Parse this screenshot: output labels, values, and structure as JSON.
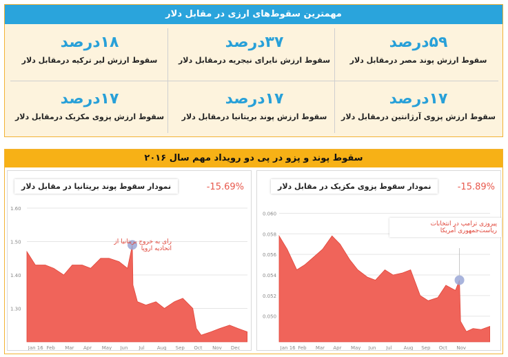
{
  "top": {
    "title": "مهمترین سقوط‌های ارزی در مقابل دلار",
    "stats": [
      {
        "pct": "۵۹درصد",
        "desc": "سقوط ارزش پوند مصر درمقابل دلار"
      },
      {
        "pct": "۳۷درصد",
        "desc": "سقوط ارزش نایرای نیجریه درمقابل دلار"
      },
      {
        "pct": "۱۸درصد",
        "desc": "سقوط ارزش لیر ترکیه درمقابل دلار"
      },
      {
        "pct": "۱۷درصد",
        "desc": "سقوط ارزش پزوی آرژانتین درمقابل دلار"
      },
      {
        "pct": "۱۷درصد",
        "desc": "سقوط ارزش پوند بریتانیا درمقابل دلار"
      },
      {
        "pct": "۱۷درصد",
        "desc": "سقوط ارزش پزوی مکزیک درمقابل دلار"
      }
    ]
  },
  "bottom": {
    "title": "سقوط پوند و پزو در پی دو رویداد مهم سال ۲۰۱۶"
  },
  "colors": {
    "area": "#f0645a",
    "accent": "#28a0d8",
    "marker": "#9aa7d6"
  },
  "chart_data": [
    {
      "type": "area",
      "title": "نمودار سقوط پوند بریتانیا در مقابل دلار",
      "change_label": "-15.69%",
      "annotation": "رای به خروج بریتانیا از اتحادیه اروپا",
      "ylim": [
        1.2,
        1.6
      ],
      "yticks": [
        "1.60",
        "1.50",
        "1.40",
        "1.30"
      ],
      "ytick_values": [
        1.6,
        1.5,
        1.4,
        1.3
      ],
      "xticks": [
        "Jan 16",
        "Feb",
        "Mar",
        "Apr",
        "May",
        "Jun",
        "Jul",
        "Aug",
        "Sep",
        "Oct",
        "Nov",
        "Dec"
      ],
      "x": [
        "Jan 01",
        "Jan 15",
        "Feb 01",
        "Feb 15",
        "Mar 01",
        "Mar 15",
        "Apr 01",
        "Apr 15",
        "May 01",
        "May 15",
        "Jun 01",
        "Jun 15",
        "Jun 23",
        "Jun 24",
        "Jul 01",
        "Jul 15",
        "Aug 01",
        "Aug 15",
        "Sep 01",
        "Sep 15",
        "Oct 01",
        "Oct 07",
        "Oct 15",
        "Nov 01",
        "Nov 15",
        "Dec 01",
        "Dec 15",
        "Dec 30"
      ],
      "values": [
        1.47,
        1.43,
        1.43,
        1.42,
        1.4,
        1.43,
        1.43,
        1.42,
        1.45,
        1.45,
        1.44,
        1.42,
        1.49,
        1.37,
        1.32,
        1.31,
        1.32,
        1.3,
        1.32,
        1.33,
        1.3,
        1.24,
        1.22,
        1.23,
        1.24,
        1.25,
        1.24,
        1.23
      ],
      "event_x": "Jun 23",
      "event_y": 1.49
    },
    {
      "type": "area",
      "title": "نمودار سقوط پزوی مکزیک در مقابل دلار",
      "change_label": "-15.89%",
      "annotation": "پیروزی ترامپ در انتخابات ریاست‌جمهوری آمریکا",
      "ylim": [
        0.0475,
        0.0605
      ],
      "yticks": [
        "0.060",
        "0.058",
        "0.056",
        "0.054",
        "0.052",
        "0.050"
      ],
      "ytick_values": [
        0.06,
        0.058,
        0.056,
        0.054,
        0.052,
        0.05
      ],
      "xticks": [
        "Jan 16",
        "Feb",
        "Mar",
        "Apr",
        "May",
        "Jun",
        "Jul",
        "Aug",
        "Sep",
        "Oct",
        "Nov"
      ],
      "x": [
        "Jan 01",
        "Jan 15",
        "Feb 01",
        "Feb 15",
        "Mar 01",
        "Mar 15",
        "Apr 01",
        "Apr 15",
        "May 01",
        "May 15",
        "Jun 01",
        "Jun 15",
        "Jul 01",
        "Jul 15",
        "Aug 01",
        "Aug 15",
        "Sep 01",
        "Sep 15",
        "Oct 01",
        "Oct 15",
        "Nov 01",
        "Nov 08",
        "Nov 10",
        "Nov 20",
        "Dec 01",
        "Dec 15",
        "Dec 30"
      ],
      "values": [
        0.0578,
        0.0565,
        0.0545,
        0.055,
        0.0558,
        0.0565,
        0.0578,
        0.057,
        0.0555,
        0.0545,
        0.0538,
        0.0535,
        0.0545,
        0.054,
        0.0542,
        0.0545,
        0.052,
        0.0515,
        0.0518,
        0.053,
        0.0525,
        0.0535,
        0.0495,
        0.0485,
        0.0488,
        0.0487,
        0.049
      ],
      "event_x": "Nov 08",
      "event_y": 0.0535
    }
  ]
}
